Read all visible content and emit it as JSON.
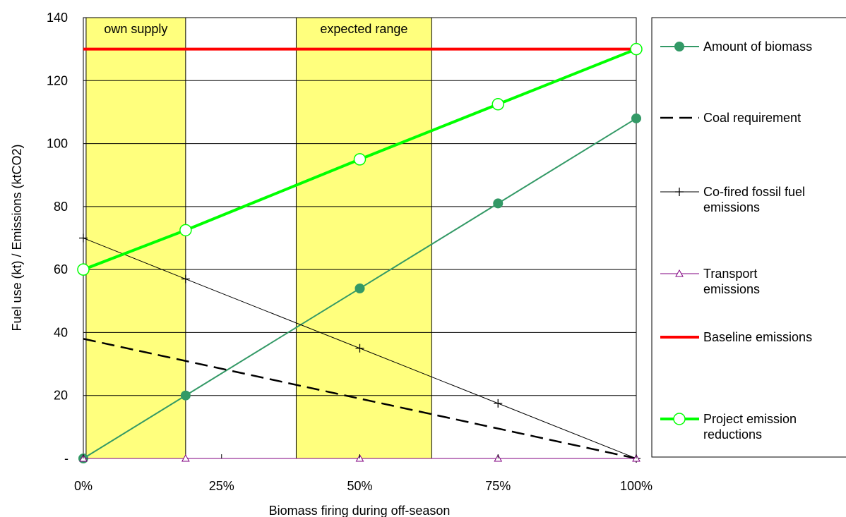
{
  "chart_data": {
    "type": "line",
    "xlabel": "Biomass firing during off-season",
    "ylabel": "Fuel use (kt) / Emissions (ktCO2)",
    "xlim": [
      0,
      100
    ],
    "ylim": [
      0,
      140
    ],
    "x_ticks": [
      {
        "value": 0,
        "label": "0%"
      },
      {
        "value": 25,
        "label": "25%"
      },
      {
        "value": 50,
        "label": "50%"
      },
      {
        "value": 75,
        "label": "75%"
      },
      {
        "value": 100,
        "label": "100%"
      }
    ],
    "y_ticks": [
      {
        "value": 0,
        "label": "-"
      },
      {
        "value": 20,
        "label": "20"
      },
      {
        "value": 40,
        "label": "40"
      },
      {
        "value": 60,
        "label": "60"
      },
      {
        "value": 80,
        "label": "80"
      },
      {
        "value": 100,
        "label": "100"
      },
      {
        "value": 120,
        "label": "120"
      },
      {
        "value": 140,
        "label": "140"
      }
    ],
    "grid": "horizontal",
    "legend_position": "right",
    "bands": [
      {
        "label": "own supply",
        "x_start": 0.5,
        "x_end": 18.5,
        "color": "#ffff66"
      },
      {
        "label": "expected range",
        "x_start": 38.5,
        "x_end": 63,
        "color": "#ffff66"
      }
    ],
    "series": [
      {
        "name": "Amount of biomass",
        "color": "#339966",
        "marker": "filled-circle",
        "dash": "solid",
        "width": 2,
        "points": [
          [
            0,
            0
          ],
          [
            18.5,
            20
          ],
          [
            50,
            54
          ],
          [
            75,
            81
          ],
          [
            100,
            108
          ]
        ]
      },
      {
        "name": "Coal requirement",
        "color": "#000000",
        "marker": "none",
        "dash": "dashed",
        "width": 2.5,
        "points": [
          [
            0,
            38
          ],
          [
            100,
            0
          ]
        ]
      },
      {
        "name": "Co-fired fossil fuel emissions",
        "color": "#000000",
        "marker": "plus",
        "dash": "solid",
        "width": 1,
        "points": [
          [
            0,
            70
          ],
          [
            18.5,
            57
          ],
          [
            50,
            35
          ],
          [
            75,
            17.5
          ],
          [
            100,
            0
          ]
        ]
      },
      {
        "name": "Transport emissions",
        "color": "#800080",
        "marker": "open-triangle",
        "dash": "solid",
        "width": 1,
        "points": [
          [
            0,
            0
          ],
          [
            18.5,
            0
          ],
          [
            50,
            0
          ],
          [
            75,
            0
          ],
          [
            100,
            0
          ]
        ]
      },
      {
        "name": "Baseline emissions",
        "color": "#ff0000",
        "marker": "none",
        "dash": "solid",
        "width": 4,
        "points": [
          [
            0,
            130
          ],
          [
            100,
            130
          ]
        ]
      },
      {
        "name": "Project emission reductions",
        "color": "#00ff00",
        "marker": "open-circle",
        "dash": "solid",
        "width": 4,
        "points": [
          [
            0,
            60
          ],
          [
            18.5,
            72.5
          ],
          [
            50,
            95
          ],
          [
            75,
            112.5
          ],
          [
            100,
            130
          ]
        ]
      }
    ],
    "legend_lines": [
      [
        "Amount of biomass"
      ],
      [
        "Coal requirement"
      ],
      [
        "Co-fired fossil fuel",
        "emissions"
      ],
      [
        "Transport",
        "emissions"
      ],
      [
        "Baseline emissions"
      ],
      [
        "Project emission",
        "reductions"
      ]
    ]
  }
}
